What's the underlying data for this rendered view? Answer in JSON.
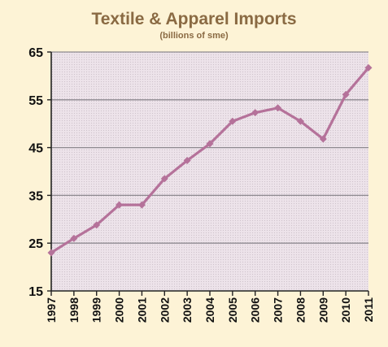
{
  "chart_data": {
    "type": "line",
    "title": "Textile & Apparel Imports",
    "subtitle": "(billions of sme)",
    "xlabel": "",
    "ylabel": "",
    "categories": [
      "1997",
      "1998",
      "1999",
      "2000",
      "2001",
      "2002",
      "2003",
      "2004",
      "2005",
      "2006",
      "2007",
      "2008",
      "2009",
      "2010",
      "2011"
    ],
    "series": [
      {
        "values": [
          23.0,
          26.0,
          28.8,
          33.0,
          33.0,
          38.5,
          42.3,
          45.8,
          50.5,
          52.3,
          53.3,
          50.5,
          46.8,
          56.1,
          61.7
        ]
      }
    ],
    "yticks": [
      15,
      25,
      35,
      45,
      55,
      65
    ],
    "ylim": [
      15,
      65
    ],
    "grid": true,
    "colors": {
      "line": "#b5729a",
      "plot_bg": "#ede3ea",
      "page_bg": "#fdf3d6",
      "title": "#8a6a43",
      "grid": "#8e8a90",
      "axis": "#222222"
    }
  }
}
